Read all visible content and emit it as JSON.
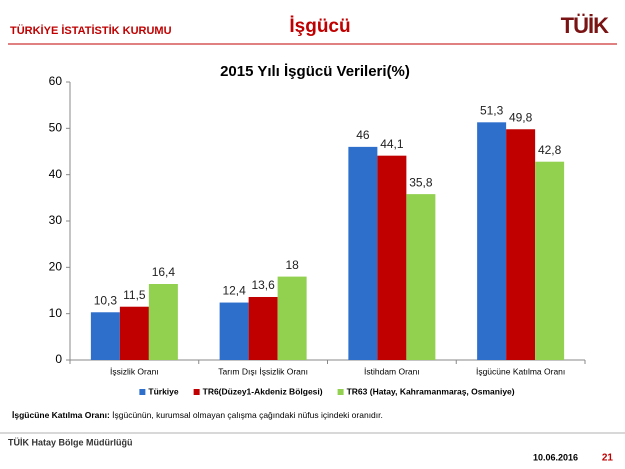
{
  "header": {
    "institution": "TÜRKİYE İSTATİSTİK KURUMU",
    "topic": "İşgücü",
    "logo": "TÜİK"
  },
  "chart_data": {
    "type": "bar",
    "title": "2015 Yılı İşgücü Verileri(%)",
    "categories": [
      "İşsizlik Oranı",
      "Tarım Dışı İşsizlik Oranı",
      "İstihdam Oranı",
      "İşgücüne Katılma Oranı"
    ],
    "series": [
      {
        "name": "Türkiye",
        "color": "#2e6fcc",
        "values": [
          10.3,
          12.4,
          46,
          51.3
        ],
        "value_labels": [
          "10,3",
          "12,4",
          "46",
          "51,3"
        ]
      },
      {
        "name": "TR6(Düzey1-Akdeniz Bölgesi)",
        "color": "#c00000",
        "values": [
          11.5,
          13.6,
          44.1,
          49.8
        ],
        "value_labels": [
          "11,5",
          "13,6",
          "44,1",
          "49,8"
        ]
      },
      {
        "name": "TR63 (Hatay, Kahramanmaraş, Osmaniye)",
        "color": "#92d050",
        "values": [
          16.4,
          18,
          35.8,
          42.8
        ],
        "value_labels": [
          "16,4",
          "18",
          "35,8",
          "42,8"
        ]
      }
    ],
    "ylim": [
      0,
      60
    ],
    "yticks": [
      0,
      10,
      20,
      30,
      40,
      50,
      60
    ],
    "grid": false,
    "legend": "bottom"
  },
  "footnote": {
    "term": "İşgücüne Katılma Oranı:",
    "text": " İşgücünün, kurumsal olmayan çalışma çağındaki nüfus içindeki oranıdır."
  },
  "footer": {
    "office": "TÜİK Hatay Bölge Müdürlüğü",
    "date": "10.06.2016",
    "page": "21"
  }
}
